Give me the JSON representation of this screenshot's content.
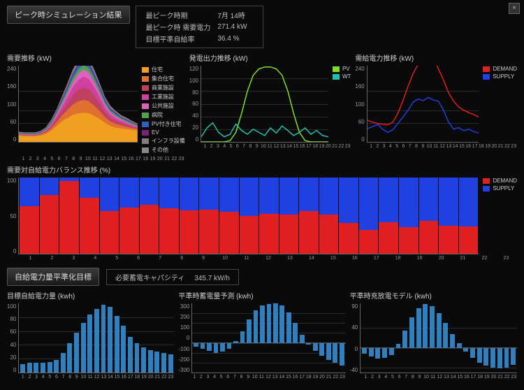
{
  "close_label": "×",
  "header": {
    "title": "ピーク時シミュレーション結果",
    "info": [
      [
        "最ピーク時期",
        "7月 14時"
      ],
      [
        "最ピーク時 需要電力",
        "271.4 kW"
      ],
      [
        "目標平準自給率",
        "36.4 %"
      ]
    ]
  },
  "section2": {
    "title": "自給電力量平準化目標",
    "info_label": "必要蓄電キャパシティ",
    "info_value": "345.7 kW/h"
  },
  "colors": {
    "grid": "#2a2a2a",
    "axis": "#666",
    "demand": "#e02020",
    "supply": "#2040e0",
    "pv": "#80e020",
    "wt": "#20c0b0",
    "bar_blue": "#3080c0",
    "stack": [
      "#f0a020",
      "#e07030",
      "#c04060",
      "#d040a0",
      "#e060c0",
      "#50a050",
      "#3060c0",
      "#802080",
      "#808080"
    ]
  },
  "chart_demand": {
    "title": "需要推移 (kW)",
    "height": 110,
    "ymax": 240,
    "yticks": [
      240,
      160,
      100,
      60,
      0
    ],
    "x": [
      1,
      2,
      3,
      4,
      5,
      6,
      7,
      8,
      9,
      10,
      11,
      12,
      13,
      14,
      15,
      16,
      17,
      18,
      19,
      20,
      21,
      22,
      23
    ],
    "legend": [
      "住宅",
      "集合住宅",
      "商業施設",
      "工業施設",
      "公共施設",
      "病院",
      "PV付き住宅",
      "EV",
      "インフラ設備",
      "その他"
    ],
    "stacks": [
      [
        20,
        2,
        1,
        1,
        1,
        2,
        1,
        1,
        1,
        2
      ],
      [
        18,
        2,
        1,
        1,
        1,
        2,
        1,
        1,
        1,
        2
      ],
      [
        18,
        2,
        1,
        1,
        1,
        2,
        1,
        1,
        1,
        2
      ],
      [
        18,
        2,
        1,
        1,
        1,
        2,
        1,
        1,
        1,
        2
      ],
      [
        20,
        3,
        2,
        1,
        1,
        2,
        1,
        1,
        1,
        2
      ],
      [
        25,
        5,
        3,
        2,
        2,
        3,
        2,
        1,
        1,
        2
      ],
      [
        35,
        8,
        6,
        4,
        3,
        4,
        3,
        2,
        2,
        3
      ],
      [
        50,
        12,
        10,
        8,
        5,
        6,
        4,
        3,
        2,
        3
      ],
      [
        65,
        18,
        15,
        12,
        8,
        8,
        6,
        4,
        3,
        4
      ],
      [
        75,
        25,
        22,
        18,
        12,
        10,
        8,
        5,
        4,
        5
      ],
      [
        85,
        32,
        30,
        25,
        16,
        12,
        10,
        6,
        5,
        6
      ],
      [
        90,
        38,
        36,
        30,
        20,
        14,
        12,
        7,
        6,
        7
      ],
      [
        92,
        40,
        40,
        34,
        22,
        15,
        13,
        8,
        6,
        8
      ],
      [
        90,
        38,
        38,
        32,
        20,
        14,
        12,
        7,
        6,
        7
      ],
      [
        82,
        32,
        32,
        26,
        16,
        12,
        10,
        6,
        5,
        6
      ],
      [
        72,
        25,
        24,
        20,
        12,
        10,
        8,
        5,
        4,
        5
      ],
      [
        60,
        18,
        16,
        14,
        8,
        8,
        6,
        4,
        3,
        4
      ],
      [
        50,
        14,
        12,
        10,
        6,
        6,
        5,
        3,
        3,
        4
      ],
      [
        45,
        12,
        10,
        8,
        5,
        5,
        4,
        3,
        2,
        3
      ],
      [
        42,
        10,
        8,
        6,
        4,
        4,
        3,
        2,
        2,
        3
      ],
      [
        40,
        8,
        6,
        5,
        3,
        4,
        3,
        2,
        2,
        3
      ],
      [
        38,
        6,
        4,
        4,
        3,
        3,
        2,
        2,
        2,
        2
      ],
      [
        36,
        5,
        3,
        3,
        2,
        3,
        2,
        1,
        1,
        2
      ]
    ]
  },
  "chart_gen": {
    "title": "発電出力推移 (kW)",
    "height": 110,
    "ymax": 120,
    "yticks": [
      120,
      100,
      80,
      60,
      40,
      20,
      0
    ],
    "x": [
      1,
      2,
      3,
      4,
      5,
      6,
      7,
      8,
      9,
      10,
      11,
      12,
      13,
      14,
      15,
      16,
      17,
      18,
      19,
      20,
      21,
      22,
      23
    ],
    "legend": [
      "PV",
      "WT"
    ],
    "series": {
      "pv": [
        0,
        0,
        0,
        0,
        0,
        2,
        15,
        45,
        80,
        105,
        115,
        118,
        118,
        115,
        105,
        80,
        45,
        15,
        2,
        0,
        0,
        0,
        0
      ],
      "wt": [
        8,
        22,
        30,
        15,
        8,
        12,
        28,
        18,
        12,
        20,
        15,
        10,
        22,
        14,
        25,
        18,
        10,
        15,
        22,
        12,
        18,
        10,
        8
      ]
    }
  },
  "chart_sd": {
    "title": "需給電力推移 (kW)",
    "height": 110,
    "ymax": 240,
    "yticks": [
      240,
      160,
      100,
      60,
      0
    ],
    "x": [
      1,
      2,
      3,
      4,
      5,
      6,
      7,
      8,
      9,
      10,
      11,
      12,
      13,
      14,
      15,
      16,
      17,
      18,
      19,
      20,
      21,
      22,
      23
    ],
    "legend": [
      "DEMAND",
      "SUPPLY"
    ],
    "series": {
      "demand": [
        68,
        62,
        58,
        55,
        54,
        62,
        90,
        130,
        175,
        215,
        245,
        258,
        271,
        260,
        230,
        195,
        155,
        128,
        110,
        100,
        92,
        86,
        78
      ],
      "supply": [
        42,
        48,
        55,
        40,
        30,
        38,
        58,
        78,
        100,
        125,
        135,
        130,
        140,
        132,
        128,
        100,
        62,
        40,
        45,
        35,
        40,
        32,
        28
      ]
    }
  },
  "chart_balance": {
    "title": "需要対自給電力バランス推移 (%)",
    "height": 110,
    "ymax": 100,
    "yticks": [
      100,
      50,
      0
    ],
    "x": [
      1,
      2,
      3,
      4,
      5,
      6,
      7,
      8,
      9,
      10,
      11,
      12,
      13,
      14,
      15,
      16,
      17,
      18,
      19,
      20,
      21,
      22,
      23
    ],
    "legend": [
      "DEMAND",
      "SUPPLY"
    ],
    "stacks": [
      [
        62,
        38
      ],
      [
        77,
        23
      ],
      [
        95,
        5
      ],
      [
        73,
        27
      ],
      [
        56,
        44
      ],
      [
        61,
        39
      ],
      [
        64,
        36
      ],
      [
        60,
        40
      ],
      [
        57,
        43
      ],
      [
        58,
        42
      ],
      [
        55,
        45
      ],
      [
        50,
        50
      ],
      [
        52,
        48
      ],
      [
        51,
        49
      ],
      [
        56,
        44
      ],
      [
        51,
        49
      ],
      [
        40,
        60
      ],
      [
        31,
        69
      ],
      [
        41,
        59
      ],
      [
        35,
        65
      ],
      [
        43,
        57
      ],
      [
        37,
        63
      ],
      [
        36,
        64
      ]
    ]
  },
  "chart_target": {
    "title": "目標自給電力量 (kwh)",
    "height": 100,
    "ymax": 100,
    "yticks": [
      100,
      80,
      60,
      40,
      20,
      0
    ],
    "x": [
      1,
      2,
      3,
      4,
      5,
      6,
      7,
      8,
      9,
      10,
      11,
      12,
      13,
      14,
      15,
      16,
      17,
      18,
      19,
      20,
      21,
      22,
      23
    ],
    "values": [
      12,
      14,
      14,
      14,
      15,
      18,
      28,
      42,
      58,
      72,
      84,
      92,
      98,
      95,
      82,
      68,
      52,
      42,
      36,
      32,
      30,
      28,
      26
    ]
  },
  "chart_storage": {
    "title": "平準時蓄電量予測 (kwh)",
    "height": 100,
    "ymin": -300,
    "ymax": 400,
    "yticks": [
      300,
      200,
      100,
      0,
      -100,
      -200,
      -300
    ],
    "x": [
      1,
      2,
      3,
      4,
      5,
      6,
      7,
      8,
      9,
      10,
      11,
      12,
      13,
      14,
      15,
      16,
      17,
      18,
      19,
      20,
      21,
      22,
      23
    ],
    "values": [
      -40,
      -60,
      -80,
      -100,
      -90,
      -60,
      20,
      120,
      240,
      330,
      380,
      395,
      400,
      380,
      310,
      200,
      80,
      -20,
      -80,
      -130,
      -170,
      -200,
      -230
    ]
  },
  "chart_cd": {
    "title": "平準時充放電モデル (kwh)",
    "height": 100,
    "ymin": -50,
    "ymax": 90,
    "yticks": [
      90,
      40,
      0,
      -40
    ],
    "x": [
      1,
      2,
      3,
      4,
      5,
      6,
      7,
      8,
      9,
      10,
      11,
      12,
      13,
      14,
      15,
      16,
      17,
      18,
      19,
      20,
      21,
      22,
      23
    ],
    "values": [
      -12,
      -18,
      -22,
      -20,
      -15,
      8,
      35,
      62,
      80,
      88,
      85,
      70,
      50,
      28,
      10,
      -8,
      -20,
      -30,
      -36,
      -40,
      -42,
      -40,
      -35
    ]
  }
}
